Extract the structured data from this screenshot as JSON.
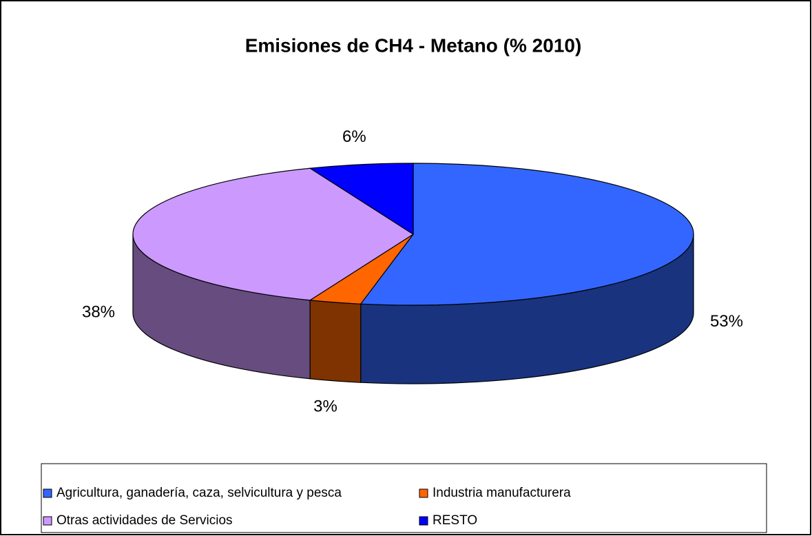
{
  "chart_data": {
    "type": "pie",
    "title": "Emisiones de CH4 - Metano (% 2010)",
    "categories": [
      "Agricultura, ganadería, caza, selvicultura y pesca",
      "Industria manufacturera",
      "Otras actividades de Servicios",
      "RESTO"
    ],
    "values": [
      53,
      3,
      38,
      6
    ],
    "value_labels": [
      "53%",
      "3%",
      "38%",
      "6%"
    ],
    "colors": [
      "#3366ff",
      "#ff6600",
      "#cc99ff",
      "#0000ff"
    ],
    "legend": "bottom"
  }
}
